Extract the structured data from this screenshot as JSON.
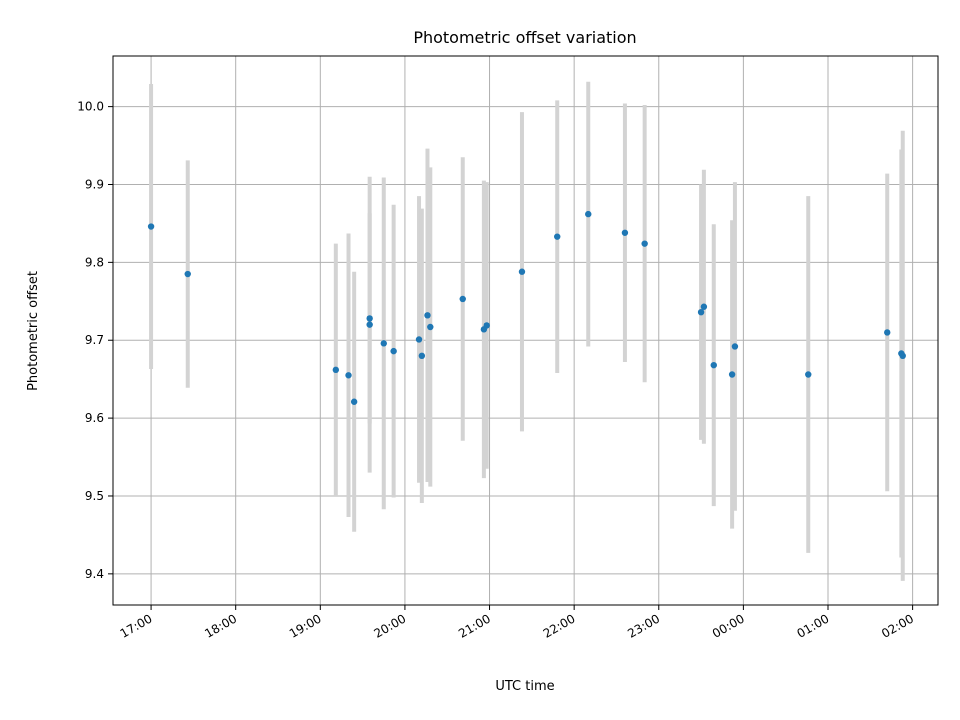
{
  "chart_data": {
    "type": "scatter",
    "title": "Photometric offset variation",
    "xlabel": "UTC time",
    "ylabel": "Photometric offset",
    "x_unit": "hours (UTC, continuing past midnight)",
    "xlim": [
      "16:33",
      "02:18"
    ],
    "ylim": [
      9.36,
      10.065
    ],
    "grid": true,
    "legend": "none",
    "x_ticks": [
      "17:00",
      "18:00",
      "19:00",
      "20:00",
      "21:00",
      "22:00",
      "23:00",
      "00:00",
      "01:00",
      "02:00"
    ],
    "y_ticks": [
      "9.4",
      "9.5",
      "9.6",
      "9.7",
      "9.8",
      "9.9",
      "10.0"
    ],
    "colors": {
      "point": "#1f77b4",
      "errorbar": "#d3d3d3",
      "grid": "#b0b0b0"
    },
    "series": [
      {
        "points": [
          {
            "x": "17:00",
            "y": 9.846,
            "err": 0.183
          },
          {
            "x": "17:26",
            "y": 9.785,
            "err": 0.146
          },
          {
            "x": "19:11",
            "y": 9.662,
            "err": 0.162
          },
          {
            "x": "19:20",
            "y": 9.655,
            "err": 0.182
          },
          {
            "x": "19:24",
            "y": 9.621,
            "err": 0.167
          },
          {
            "x": "19:35",
            "y": 9.728,
            "err": 0.135
          },
          {
            "x": "19:35",
            "y": 9.72,
            "err": 0.19
          },
          {
            "x": "19:45",
            "y": 9.696,
            "err": 0.213
          },
          {
            "x": "19:52",
            "y": 9.686,
            "err": 0.188
          },
          {
            "x": "20:10",
            "y": 9.701,
            "err": 0.184
          },
          {
            "x": "20:12",
            "y": 9.68,
            "err": 0.189
          },
          {
            "x": "20:16",
            "y": 9.732,
            "err": 0.214
          },
          {
            "x": "20:18",
            "y": 9.717,
            "err": 0.205
          },
          {
            "x": "20:41",
            "y": 9.753,
            "err": 0.182
          },
          {
            "x": "20:56",
            "y": 9.714,
            "err": 0.191
          },
          {
            "x": "20:58",
            "y": 9.719,
            "err": 0.184
          },
          {
            "x": "21:23",
            "y": 9.788,
            "err": 0.205
          },
          {
            "x": "21:48",
            "y": 9.833,
            "err": 0.175
          },
          {
            "x": "22:10",
            "y": 9.862,
            "err": 0.17
          },
          {
            "x": "22:36",
            "y": 9.838,
            "err": 0.166
          },
          {
            "x": "22:50",
            "y": 9.824,
            "err": 0.178
          },
          {
            "x": "23:30",
            "y": 9.736,
            "err": 0.164
          },
          {
            "x": "23:32",
            "y": 9.743,
            "err": 0.176
          },
          {
            "x": "23:39",
            "y": 9.668,
            "err": 0.181
          },
          {
            "x": "23:52",
            "y": 9.656,
            "err": 0.198
          },
          {
            "x": "23:54",
            "y": 9.692,
            "err": 0.211
          },
          {
            "x": "00:46",
            "y": 9.656,
            "err": 0.229
          },
          {
            "x": "01:42",
            "y": 9.71,
            "err": 0.204
          },
          {
            "x": "01:52",
            "y": 9.683,
            "err": 0.262
          },
          {
            "x": "01:53",
            "y": 9.68,
            "err": 0.289
          }
        ]
      }
    ]
  }
}
